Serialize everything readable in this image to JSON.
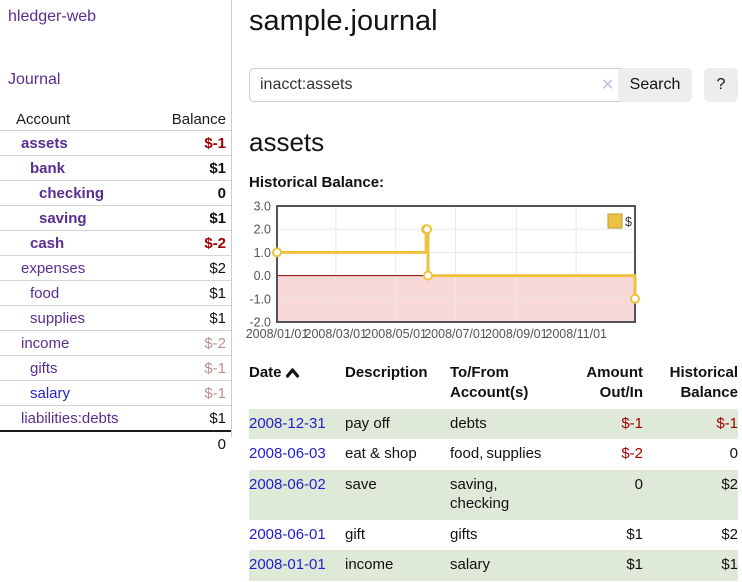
{
  "brand": "hledger-web",
  "nav": {
    "journal_label": "Journal"
  },
  "sidebar": {
    "headers": {
      "account": "Account",
      "balance": "Balance"
    },
    "accounts": [
      {
        "name": "assets",
        "level": 1,
        "bold": true,
        "balance": "$-1",
        "balance_style": "neg"
      },
      {
        "name": "bank",
        "level": 2,
        "bold": true,
        "balance": "$1",
        "balance_style": "pos"
      },
      {
        "name": "checking",
        "level": 3,
        "bold": true,
        "balance": "0",
        "balance_style": "pos"
      },
      {
        "name": "saving",
        "level": 3,
        "bold": true,
        "balance": "$1",
        "balance_style": "pos"
      },
      {
        "name": "cash",
        "level": 2,
        "bold": true,
        "balance": "$-2",
        "balance_style": "neg"
      },
      {
        "name": "expenses",
        "level": 1,
        "bold": false,
        "balance": "$2",
        "balance_style": "pos"
      },
      {
        "name": "food",
        "level": 2,
        "bold": false,
        "balance": "$1",
        "balance_style": "pos"
      },
      {
        "name": "supplies",
        "level": 2,
        "bold": false,
        "balance": "$1",
        "balance_style": "pos"
      },
      {
        "name": "income",
        "level": 1,
        "bold": false,
        "balance": "$-2",
        "balance_style": "neg-faded"
      },
      {
        "name": "gifts",
        "level": 2,
        "bold": false,
        "balance": "$-1",
        "balance_style": "neg-faded"
      },
      {
        "name": "salary",
        "level": 2,
        "bold": false,
        "balance": "$-1",
        "balance_style": "neg-faded",
        "link_style": "unvisited"
      },
      {
        "name": "liabilities:debts",
        "level": 1,
        "bold": false,
        "balance": "$1",
        "balance_style": "pos"
      }
    ],
    "total": "0"
  },
  "header": {
    "title": "sample.journal"
  },
  "search": {
    "value": "inacct:assets",
    "clear_icon": "✕",
    "button_label": "Search",
    "help_label": "?"
  },
  "account_page": {
    "title": "assets",
    "chart_label": "Historical Balance:"
  },
  "chart_data": {
    "type": "line",
    "title": "Historical Balance:",
    "step": true,
    "legend_position": "top-right",
    "grid": true,
    "xlim": [
      "2008-01-01",
      "2008-12-31"
    ],
    "ylim": [
      -2,
      3
    ],
    "x_ticks": [
      "2008/01/01",
      "2008/03/01",
      "2008/05/01",
      "2008/07/01",
      "2008/09/01",
      "2008/11/01"
    ],
    "y_ticks": [
      "3.0",
      "2.0",
      "1.0",
      "0.0",
      "-1.0",
      "-2.0"
    ],
    "series": [
      {
        "name": "$",
        "color": "#edc240",
        "points": [
          [
            "2008-01-01",
            1
          ],
          [
            "2008-06-01",
            2
          ],
          [
            "2008-06-02",
            2
          ],
          [
            "2008-06-03",
            0
          ],
          [
            "2008-12-31",
            -1
          ]
        ]
      }
    ],
    "negative_region_color": "#f9d8d8",
    "zero_line_color": "#8b0000",
    "border_color": "#545454",
    "gridline_color": "#e8e8e8",
    "tick_label_color": "#545454"
  },
  "register": {
    "columns": [
      "Date",
      "Description",
      "To/From Account(s)",
      "Amount Out/In",
      "Historical Balance"
    ],
    "sort_icon": "caret-up",
    "rows": [
      {
        "date": "2008-12-31",
        "description": "pay off",
        "accounts": [
          "debts"
        ],
        "amount": "$-1",
        "amount_style": "neg",
        "balance": "$-1",
        "balance_style": "neg"
      },
      {
        "date": "2008-06-03",
        "description": "eat & shop",
        "accounts": [
          "food",
          "supplies"
        ],
        "amount": "$-2",
        "amount_style": "neg",
        "balance": "0",
        "balance_style": "pos"
      },
      {
        "date": "2008-06-02",
        "description": "save",
        "accounts": [
          "saving",
          "checking"
        ],
        "amount": "0",
        "amount_style": "pos",
        "balance": "$2",
        "balance_style": "pos"
      },
      {
        "date": "2008-06-01",
        "description": "gift",
        "accounts": [
          "gifts"
        ],
        "amount": "$1",
        "amount_style": "pos",
        "balance": "$2",
        "balance_style": "pos"
      },
      {
        "date": "2008-01-01",
        "description": "income",
        "accounts": [
          "salary"
        ],
        "amount": "$1",
        "amount_style": "pos",
        "balance": "$1",
        "balance_style": "pos"
      }
    ]
  }
}
